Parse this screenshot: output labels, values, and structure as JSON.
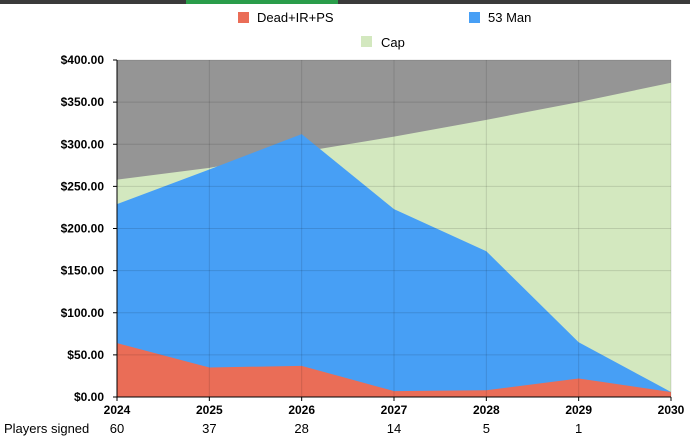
{
  "chart_data": {
    "type": "area",
    "x": [
      2024,
      2025,
      2026,
      2027,
      2028,
      2029,
      2030
    ],
    "categories": [
      "2024",
      "2025",
      "2026",
      "2027",
      "2028",
      "2029",
      "2030"
    ],
    "ylim": [
      0,
      400
    ],
    "yticks": [
      "$0.00",
      "$50.00",
      "$100.00",
      "$150.00",
      "$200.00",
      "$250.00",
      "$300.00",
      "$350.00",
      "$400.00"
    ],
    "series": [
      {
        "name": "Cap",
        "color": "#d3e8bf",
        "values": [
          258,
          272,
          291,
          309,
          329,
          350,
          373
        ]
      },
      {
        "name": "53 Man",
        "color": "#479ff5",
        "stacked_total": [
          229,
          270,
          312,
          223,
          173,
          65,
          6
        ]
      },
      {
        "name": "Dead+IR+PS",
        "color": "#ea6d57",
        "values": [
          64,
          35,
          37,
          7,
          8,
          22,
          6
        ]
      }
    ],
    "background_color": "#959595",
    "legend": [
      "Dead+IR+PS",
      "53 Man",
      "Cap"
    ],
    "legend_position": "top",
    "grid": true,
    "players_signed": {
      "label": "Players signed",
      "values": [
        "60",
        "37",
        "28",
        "14",
        "5",
        "1"
      ]
    }
  }
}
